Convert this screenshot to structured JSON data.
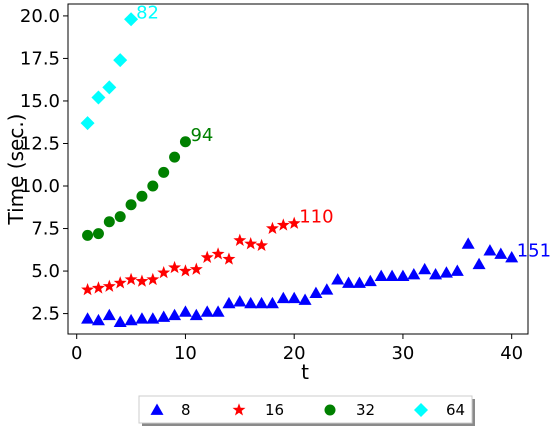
{
  "chart_data": {
    "type": "scatter",
    "xlabel": "t",
    "ylabel": "Time (sec.)",
    "xlim": [
      -0.8,
      41.5
    ],
    "ylim": [
      1.3,
      20.7
    ],
    "xticks": [
      0,
      10,
      20,
      30,
      40
    ],
    "yticks": [
      2.5,
      5.0,
      7.5,
      10.0,
      12.5,
      15.0,
      17.5,
      20.0
    ],
    "xtick_labels": [
      "0",
      "10",
      "20",
      "30",
      "40"
    ],
    "ytick_labels": [
      "2.5",
      "5.0",
      "7.5",
      "10.0",
      "12.5",
      "15.0",
      "17.5",
      "20.0"
    ],
    "grid": false,
    "legend_position": "bottom-center-outside",
    "series": [
      {
        "name": "8",
        "marker": "triangle",
        "color": "#0000ff",
        "x": [
          1,
          2,
          3,
          4,
          5,
          6,
          7,
          8,
          9,
          10,
          11,
          12,
          13,
          14,
          15,
          16,
          17,
          18,
          19,
          20,
          21,
          22,
          23,
          24,
          25,
          26,
          27,
          28,
          29,
          30,
          31,
          32,
          33,
          34,
          35,
          36,
          37,
          38,
          39,
          40
        ],
        "y": [
          2.2,
          2.1,
          2.4,
          2.0,
          2.1,
          2.2,
          2.2,
          2.3,
          2.4,
          2.6,
          2.4,
          2.6,
          2.6,
          3.1,
          3.2,
          3.1,
          3.1,
          3.1,
          3.4,
          3.4,
          3.3,
          3.7,
          3.9,
          4.5,
          4.3,
          4.3,
          4.4,
          4.7,
          4.7,
          4.7,
          4.8,
          5.1,
          4.8,
          4.9,
          5.0,
          6.6,
          5.4,
          6.2,
          6.0,
          5.8
        ],
        "annotation": "151"
      },
      {
        "name": "16",
        "marker": "star",
        "color": "#ff0000",
        "x": [
          1,
          2,
          3,
          4,
          5,
          6,
          7,
          8,
          9,
          10,
          11,
          12,
          13,
          14,
          15,
          16,
          17,
          18,
          19,
          20
        ],
        "y": [
          3.9,
          4.0,
          4.1,
          4.3,
          4.5,
          4.4,
          4.5,
          4.9,
          5.2,
          5.0,
          5.1,
          5.8,
          6.0,
          5.7,
          6.8,
          6.6,
          6.5,
          7.5,
          7.7,
          7.8
        ],
        "annotation": "110"
      },
      {
        "name": "32",
        "marker": "circle",
        "color": "#008000",
        "x": [
          1,
          2,
          3,
          4,
          5,
          6,
          7,
          8,
          9,
          10
        ],
        "y": [
          7.1,
          7.2,
          7.9,
          8.2,
          8.9,
          9.4,
          10.0,
          10.8,
          11.7,
          12.6
        ],
        "annotation": "94"
      },
      {
        "name": "64",
        "marker": "diamond",
        "color": "#00ffff",
        "x": [
          1,
          2,
          3,
          4,
          5
        ],
        "y": [
          13.7,
          15.2,
          15.8,
          17.4,
          19.8
        ],
        "annotation": "82"
      }
    ]
  }
}
